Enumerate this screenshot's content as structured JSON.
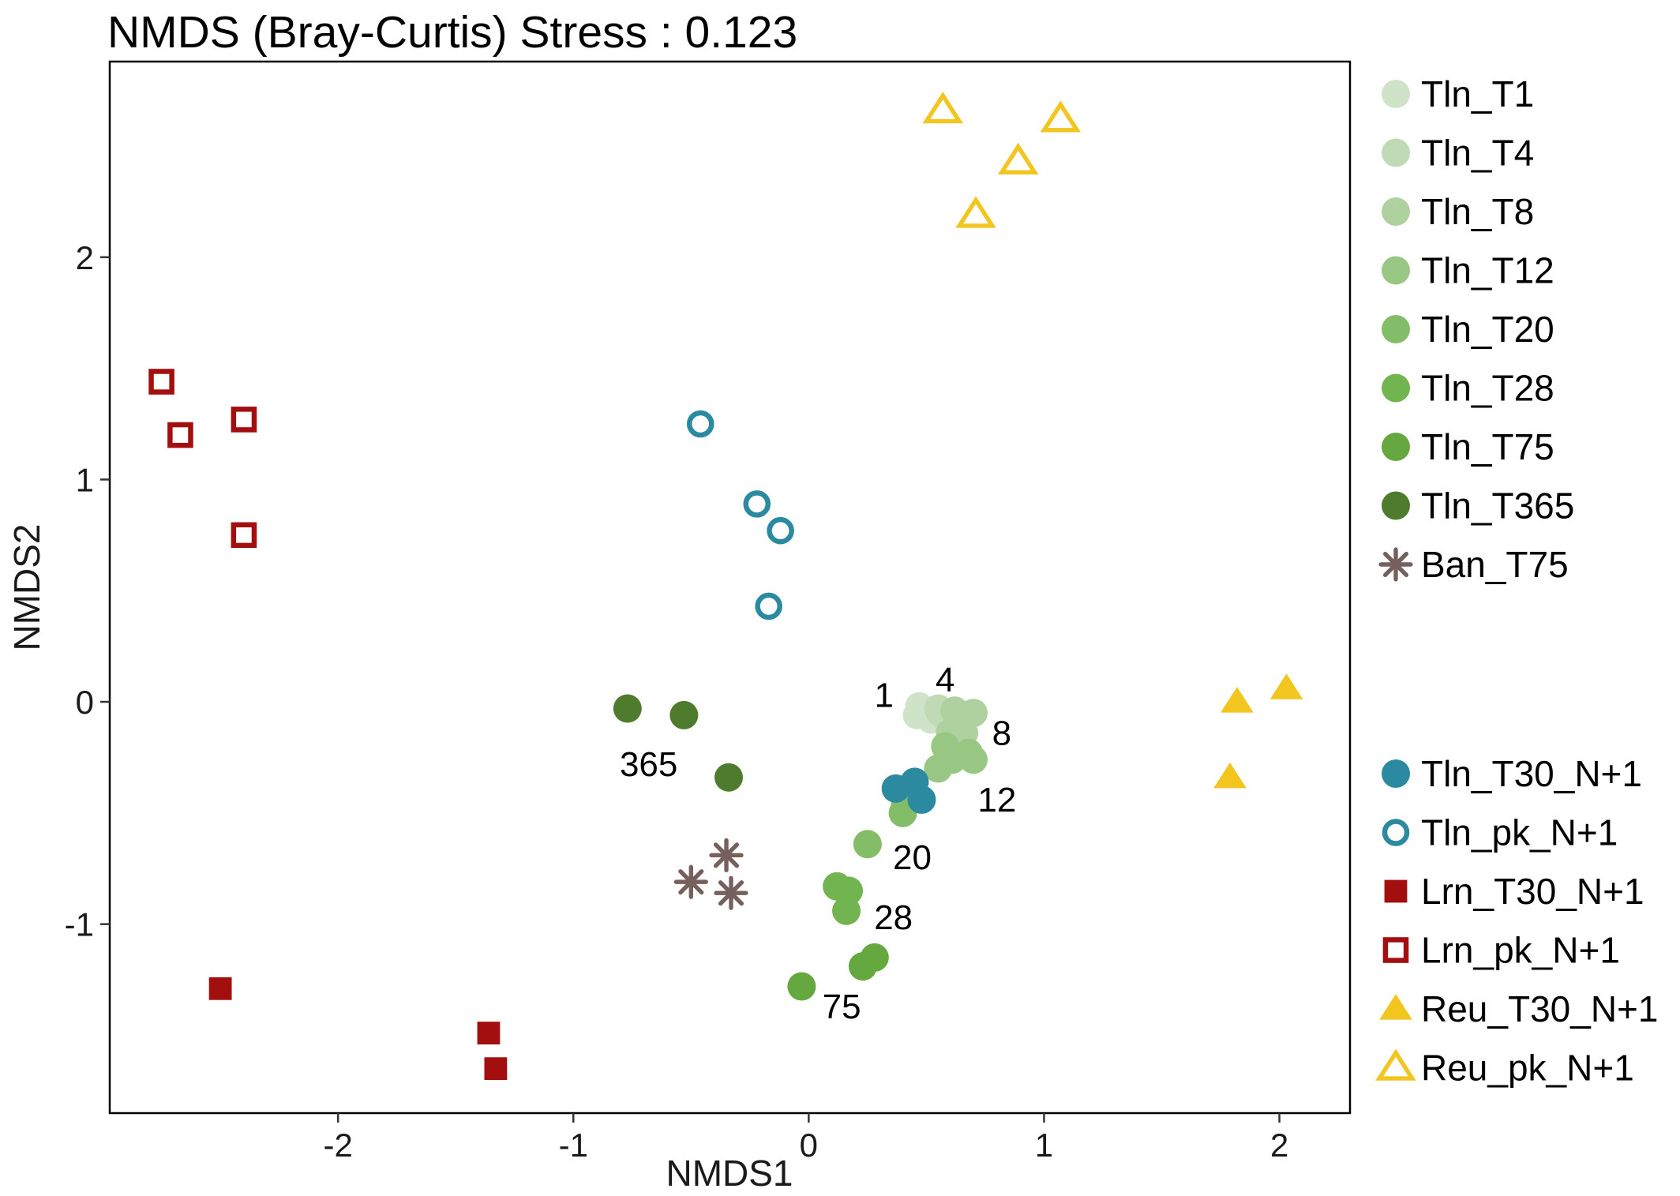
{
  "chart_data": {
    "type": "scatter",
    "title": "NMDS (Bray-Curtis) Stress : 0.123",
    "xlabel": "NMDS1",
    "ylabel": "NMDS2",
    "xlim": [
      -2.97,
      2.3
    ],
    "ylim": [
      -1.85,
      2.88
    ],
    "x_ticks": [
      -2,
      -1,
      0,
      1,
      2
    ],
    "x_tick_labels": [
      "-2",
      "-1",
      "0",
      "1",
      "2"
    ],
    "y_ticks": [
      -1,
      0,
      1,
      2
    ],
    "y_tick_labels": [
      "-1",
      "0",
      "1",
      "2"
    ],
    "grid": false,
    "legend_position": "right",
    "series": [
      {
        "name": "Tln_T1",
        "marker": "circle",
        "color": "#cfe3c9",
        "points": [
          [
            0.47,
            -0.02
          ],
          [
            0.48,
            -0.05
          ],
          [
            0.5,
            -0.04
          ],
          [
            0.52,
            -0.08
          ],
          [
            0.46,
            -0.06
          ]
        ]
      },
      {
        "name": "Tln_T4",
        "marker": "circle",
        "color": "#bfdab5",
        "points": [
          [
            0.55,
            -0.03
          ],
          [
            0.58,
            -0.07
          ],
          [
            0.56,
            -0.05
          ]
        ]
      },
      {
        "name": "Tln_T8",
        "marker": "circle",
        "color": "#aed19f",
        "points": [
          [
            0.62,
            -0.04
          ],
          [
            0.66,
            -0.06
          ],
          [
            0.7,
            -0.05
          ],
          [
            0.6,
            -0.14
          ],
          [
            0.66,
            -0.14
          ]
        ]
      },
      {
        "name": "Tln_T12",
        "marker": "circle",
        "color": "#98c783",
        "points": [
          [
            0.58,
            -0.2
          ],
          [
            0.68,
            -0.23
          ],
          [
            0.61,
            -0.26
          ],
          [
            0.55,
            -0.3
          ],
          [
            0.7,
            -0.26
          ]
        ]
      },
      {
        "name": "Tln_T20",
        "marker": "circle",
        "color": "#84bd68",
        "points": [
          [
            0.42,
            -0.43
          ],
          [
            0.41,
            -0.46
          ],
          [
            0.4,
            -0.5
          ],
          [
            0.25,
            -0.64
          ]
        ]
      },
      {
        "name": "Tln_T28",
        "marker": "circle",
        "color": "#72b450",
        "points": [
          [
            0.12,
            -0.83
          ],
          [
            0.17,
            -0.85
          ],
          [
            0.16,
            -0.94
          ]
        ]
      },
      {
        "name": "Tln_T75",
        "marker": "circle",
        "color": "#65a83f",
        "points": [
          [
            0.28,
            -1.15
          ],
          [
            0.23,
            -1.19
          ],
          [
            -0.03,
            -1.28
          ]
        ]
      },
      {
        "name": "Tln_T365",
        "marker": "circle",
        "color": "#4f7c2c",
        "points": [
          [
            -0.77,
            -0.03
          ],
          [
            -0.53,
            -0.06
          ],
          [
            -0.34,
            -0.34
          ]
        ]
      },
      {
        "name": "Ban_T75",
        "marker": "asterisk",
        "color": "#76605d",
        "points": [
          [
            -0.35,
            -0.69
          ],
          [
            -0.5,
            -0.81
          ],
          [
            -0.33,
            -0.86
          ]
        ]
      },
      {
        "name": "Tln_T30_N+1",
        "marker": "circle",
        "color": "#2b8aa0",
        "points": [
          [
            0.37,
            -0.39
          ],
          [
            0.45,
            -0.36
          ],
          [
            0.48,
            -0.44
          ]
        ]
      },
      {
        "name": "Tln_pk_N+1",
        "marker": "circle-open",
        "color": "#2b8aa0",
        "points": [
          [
            -0.46,
            1.25
          ],
          [
            -0.22,
            0.89
          ],
          [
            -0.12,
            0.77
          ],
          [
            -0.17,
            0.43
          ]
        ]
      },
      {
        "name": "Lrn_T30_N+1",
        "marker": "square",
        "color": "#a30e0e",
        "points": [
          [
            -2.5,
            -1.29
          ],
          [
            -1.36,
            -1.49
          ],
          [
            -1.33,
            -1.65
          ]
        ]
      },
      {
        "name": "Lrn_pk_N+1",
        "marker": "square-open",
        "color": "#a30e0e",
        "points": [
          [
            -2.75,
            1.44
          ],
          [
            -2.67,
            1.2
          ],
          [
            -2.4,
            1.27
          ],
          [
            -2.4,
            0.75
          ]
        ]
      },
      {
        "name": "Reu_T30_N+1",
        "marker": "triangle",
        "color": "#f2c51f",
        "points": [
          [
            1.82,
            0.0
          ],
          [
            2.03,
            0.06
          ],
          [
            1.79,
            -0.34
          ]
        ]
      },
      {
        "name": "Reu_pk_N+1",
        "marker": "triangle-open",
        "color": "#f2c51f",
        "points": [
          [
            0.57,
            2.66
          ],
          [
            1.07,
            2.62
          ],
          [
            0.89,
            2.43
          ],
          [
            0.71,
            2.19
          ]
        ]
      }
    ],
    "annotations": [
      {
        "text": "1",
        "x": 0.32,
        "y": 0.03
      },
      {
        "text": "4",
        "x": 0.58,
        "y": 0.1
      },
      {
        "text": "8",
        "x": 0.82,
        "y": -0.14
      },
      {
        "text": "12",
        "x": 0.8,
        "y": -0.44
      },
      {
        "text": "20",
        "x": 0.44,
        "y": -0.7
      },
      {
        "text": "28",
        "x": 0.36,
        "y": -0.97
      },
      {
        "text": "75",
        "x": 0.14,
        "y": -1.37
      },
      {
        "text": "365",
        "x": -0.68,
        "y": -0.28
      }
    ]
  },
  "legend_groups": [
    {
      "items": [
        0,
        1,
        2,
        3,
        4,
        5,
        6,
        7,
        8
      ]
    },
    {
      "items": [
        9,
        10,
        11,
        12,
        13,
        14
      ]
    }
  ]
}
